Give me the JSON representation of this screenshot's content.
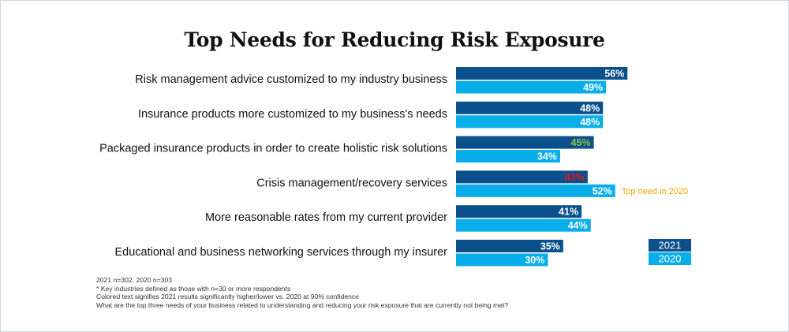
{
  "colors": {
    "series_2021": "#0b4f8c",
    "series_2020": "#08aeea",
    "label_default": "#ffffff",
    "label_higher": "#8dc63f",
    "label_lower": "#e4141b",
    "annotation": "#f0a500"
  },
  "chart_data": {
    "type": "bar",
    "orientation": "horizontal",
    "title": "Top Needs for Reducing Risk Exposure",
    "categories": [
      "Risk management advice customized to my industry business",
      "Insurance products more customized to my business's needs",
      "Packaged insurance products in order to create holistic risk solutions",
      "Crisis management/recovery services",
      "More reasonable rates from my current provider",
      "Educational and business networking services through my insurer"
    ],
    "series": [
      {
        "name": "2021",
        "values": [
          56,
          48,
          45,
          43,
          41,
          35
        ],
        "labels": [
          "56%",
          "48%",
          "45%",
          "43%",
          "41%",
          "35%"
        ],
        "label_colors": [
          "label_default",
          "label_default",
          "label_higher",
          "label_lower",
          "label_default",
          "label_default"
        ]
      },
      {
        "name": "2020",
        "values": [
          49,
          48,
          34,
          52,
          44,
          30
        ],
        "labels": [
          "49%",
          "48%",
          "34%",
          "52%",
          "44%",
          "30%"
        ],
        "label_colors": [
          "label_default",
          "label_default",
          "label_default",
          "label_default",
          "label_default",
          "label_default"
        ]
      }
    ],
    "annotations": [
      {
        "category_index": 3,
        "series": "2020",
        "text": "Top need in 2020"
      }
    ],
    "xlim": [
      0,
      100
    ],
    "grid": false,
    "legend_position": "right"
  },
  "notes": [
    "2021 n=302, 2020 n=303",
    "* Key industries defined as those with n=30 or more respondents",
    "Colored text signifies 2021 results significantly higher/lower vs. 2020 at 90% confidence",
    "What are the top three needs of your business related to understanding and reducing your risk exposure that are currently not being met?"
  ]
}
